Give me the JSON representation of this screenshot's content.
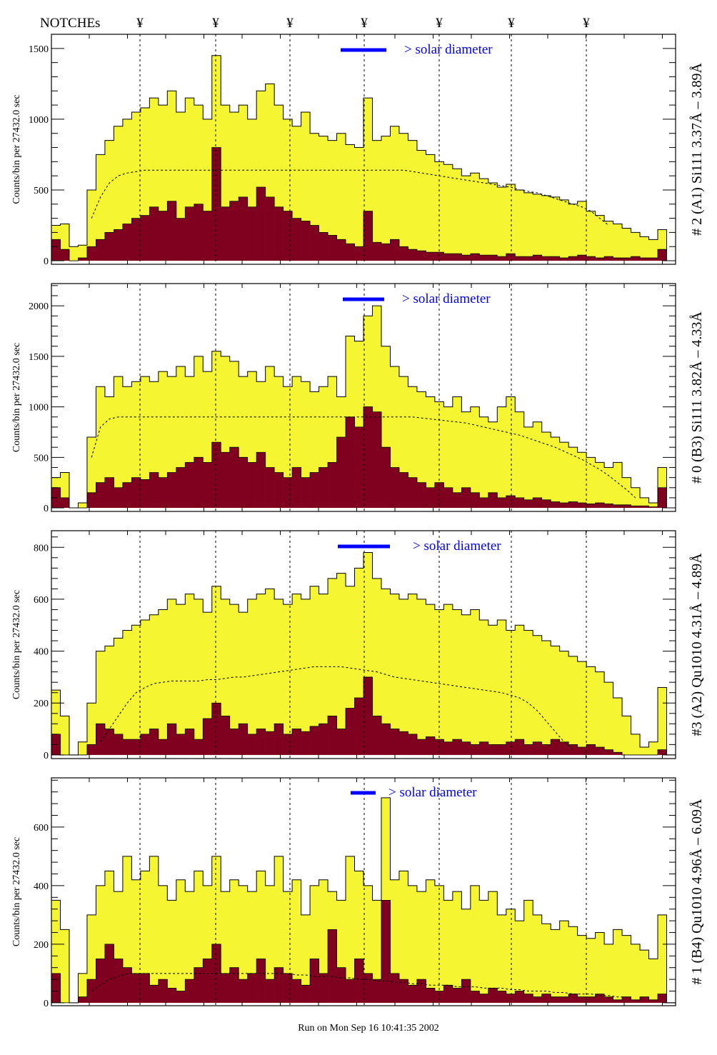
{
  "header": {
    "notches_label": "NOTCHEs",
    "notch_symbol": "¥",
    "notch_count": 7
  },
  "footer": {
    "run_text": "Run on Mon Sep 16 10:41:35 2002"
  },
  "colors": {
    "total_fill": "#f5f532",
    "sub_fill": "#800020",
    "legend": "#0000ff",
    "outline": "#000000"
  },
  "chart_data": [
    {
      "type": "bar",
      "title": "# 2 (A1) Si111  3.37Å – 3.89Å",
      "ylabel": "Counts/bin per  27432.0 sec",
      "legend_text": "> solar diameter",
      "ylim": [
        -25,
        1600
      ],
      "yticks": [
        0,
        500,
        1000,
        1500
      ],
      "ytick_labels": [
        "0",
        "500",
        "1000",
        "1500"
      ],
      "total": [
        250,
        260,
        100,
        110,
        500,
        750,
        850,
        950,
        1000,
        1050,
        1080,
        1150,
        1100,
        1200,
        1050,
        1150,
        1100,
        1000,
        1450,
        1100,
        1050,
        1100,
        1000,
        1200,
        1250,
        1100,
        1000,
        950,
        1050,
        900,
        880,
        850,
        900,
        820,
        800,
        1150,
        850,
        880,
        950,
        900,
        850,
        780,
        750,
        700,
        680,
        650,
        600,
        620,
        580,
        550,
        520,
        540,
        500,
        480,
        470,
        460,
        450,
        430,
        400,
        420,
        350,
        320,
        280,
        260,
        230,
        200,
        170,
        150,
        220,
        0
      ],
      "subset": [
        150,
        80,
        0,
        20,
        100,
        150,
        200,
        220,
        260,
        300,
        320,
        380,
        350,
        420,
        300,
        380,
        400,
        350,
        800,
        380,
        420,
        450,
        380,
        520,
        450,
        380,
        350,
        300,
        280,
        250,
        200,
        180,
        150,
        120,
        100,
        350,
        130,
        120,
        150,
        100,
        80,
        70,
        60,
        60,
        50,
        50,
        40,
        50,
        40,
        40,
        30,
        50,
        30,
        30,
        40,
        30,
        30,
        20,
        30,
        40,
        30,
        20,
        30,
        20,
        20,
        30,
        20,
        20,
        80,
        0
      ],
      "mean": [
        0,
        0,
        0,
        0,
        300,
        450,
        550,
        600,
        620,
        630,
        640,
        640,
        640,
        640,
        640,
        640,
        640,
        640,
        640,
        640,
        640,
        640,
        640,
        640,
        640,
        640,
        640,
        640,
        640,
        640,
        640,
        640,
        640,
        640,
        640,
        640,
        640,
        640,
        640,
        640,
        630,
        620,
        610,
        600,
        590,
        580,
        570,
        560,
        550,
        540,
        530,
        520,
        500,
        490,
        480,
        460,
        440,
        420,
        400,
        380,
        350,
        300,
        250,
        0,
        0,
        0,
        0,
        0,
        0,
        0
      ]
    },
    {
      "type": "bar",
      "title": "# 0 (B3) Si111  3.82Å – 4.33Å",
      "ylabel": "Counts/bin per  27432.0 sec",
      "legend_text": "> solar diameter",
      "ylim": [
        -35,
        2220
      ],
      "yticks": [
        0,
        500,
        1000,
        1500,
        2000
      ],
      "ytick_labels": [
        "0",
        "500",
        "1000",
        "1500",
        "2000"
      ],
      "total": [
        300,
        350,
        0,
        50,
        700,
        1200,
        1100,
        1300,
        1200,
        1250,
        1300,
        1250,
        1350,
        1300,
        1400,
        1300,
        1500,
        1350,
        1550,
        1500,
        1450,
        1300,
        1350,
        1250,
        1400,
        1300,
        1200,
        1300,
        1250,
        1150,
        1200,
        1300,
        1100,
        1700,
        1650,
        1900,
        2000,
        1600,
        1400,
        1300,
        1200,
        1150,
        1100,
        1050,
        1000,
        1100,
        950,
        1000,
        900,
        850,
        1000,
        1100,
        950,
        800,
        850,
        750,
        700,
        650,
        600,
        550,
        500,
        450,
        400,
        450,
        300,
        200,
        100,
        50,
        400,
        0
      ],
      "subset": [
        200,
        100,
        0,
        0,
        150,
        250,
        300,
        200,
        250,
        300,
        280,
        350,
        300,
        350,
        400,
        450,
        500,
        450,
        650,
        550,
        600,
        500,
        450,
        550,
        400,
        350,
        300,
        400,
        300,
        350,
        400,
        450,
        700,
        900,
        800,
        1000,
        950,
        600,
        400,
        350,
        300,
        250,
        200,
        250,
        200,
        150,
        200,
        150,
        100,
        150,
        100,
        120,
        100,
        80,
        100,
        80,
        60,
        50,
        60,
        50,
        40,
        50,
        40,
        30,
        30,
        20,
        20,
        10,
        200,
        0
      ],
      "mean": [
        0,
        0,
        0,
        0,
        500,
        800,
        880,
        900,
        900,
        900,
        900,
        900,
        900,
        900,
        900,
        900,
        900,
        900,
        900,
        900,
        900,
        900,
        900,
        900,
        900,
        900,
        900,
        900,
        900,
        900,
        900,
        900,
        900,
        900,
        900,
        900,
        900,
        900,
        900,
        900,
        900,
        890,
        880,
        870,
        860,
        850,
        840,
        820,
        800,
        780,
        760,
        740,
        720,
        690,
        660,
        630,
        600,
        560,
        520,
        480,
        430,
        380,
        320,
        250,
        180,
        100,
        0,
        0,
        0,
        0
      ]
    },
    {
      "type": "bar",
      "title": "#3 (A2) Qu1010  4.31Å – 4.89Å",
      "ylabel": "Counts/bin per  27432.0 sec",
      "legend_text": "> solar diameter",
      "ylim": [
        -14,
        864
      ],
      "yticks": [
        0,
        200,
        400,
        600,
        800
      ],
      "ytick_labels": [
        "0",
        "200",
        "400",
        "600",
        "800"
      ],
      "total": [
        250,
        150,
        0,
        50,
        200,
        400,
        420,
        450,
        480,
        500,
        520,
        540,
        560,
        600,
        580,
        620,
        600,
        550,
        650,
        600,
        580,
        550,
        600,
        620,
        640,
        600,
        580,
        620,
        600,
        650,
        620,
        680,
        700,
        650,
        720,
        780,
        680,
        640,
        620,
        600,
        620,
        600,
        580,
        560,
        580,
        560,
        540,
        560,
        520,
        500,
        520,
        480,
        500,
        480,
        460,
        440,
        420,
        400,
        380,
        360,
        340,
        320,
        280,
        220,
        150,
        80,
        30,
        50,
        260,
        0
      ],
      "subset": [
        80,
        0,
        0,
        0,
        40,
        120,
        100,
        80,
        60,
        60,
        80,
        100,
        60,
        120,
        80,
        100,
        60,
        140,
        200,
        150,
        100,
        120,
        80,
        100,
        90,
        120,
        80,
        100,
        90,
        110,
        120,
        150,
        100,
        180,
        220,
        300,
        150,
        120,
        100,
        90,
        80,
        60,
        70,
        60,
        50,
        60,
        50,
        40,
        50,
        40,
        40,
        50,
        60,
        40,
        50,
        40,
        60,
        50,
        40,
        30,
        40,
        30,
        20,
        10,
        0,
        0,
        0,
        0,
        20,
        0
      ],
      "mean": [
        0,
        0,
        0,
        0,
        0,
        50,
        100,
        150,
        200,
        240,
        260,
        275,
        280,
        285,
        285,
        285,
        285,
        290,
        290,
        295,
        300,
        300,
        305,
        310,
        315,
        320,
        325,
        330,
        335,
        340,
        340,
        340,
        340,
        335,
        330,
        325,
        320,
        310,
        300,
        295,
        290,
        285,
        280,
        275,
        270,
        265,
        260,
        255,
        250,
        245,
        240,
        230,
        220,
        200,
        170,
        130,
        90,
        50,
        20,
        0,
        0,
        0,
        0,
        0,
        0,
        0,
        0,
        0,
        0,
        0
      ]
    },
    {
      "type": "bar",
      "title": "# 1 (B4) Qu1010 4.96Å – 6.09Å",
      "ylabel": "Counts/bin per  27432.0 sec",
      "legend_text": "> solar diameter",
      "ylim": [
        -10,
        768
      ],
      "yticks": [
        0,
        200,
        400,
        600
      ],
      "ytick_labels": [
        "0",
        "200",
        "400",
        "600"
      ],
      "total": [
        350,
        250,
        0,
        100,
        300,
        400,
        450,
        380,
        500,
        420,
        450,
        500,
        400,
        350,
        420,
        380,
        450,
        400,
        500,
        380,
        420,
        400,
        380,
        450,
        400,
        500,
        380,
        420,
        300,
        400,
        420,
        380,
        350,
        500,
        450,
        400,
        350,
        700,
        420,
        450,
        400,
        380,
        420,
        400,
        350,
        380,
        320,
        400,
        350,
        380,
        300,
        320,
        280,
        350,
        300,
        270,
        250,
        280,
        260,
        230,
        220,
        240,
        200,
        250,
        230,
        200,
        180,
        150,
        300,
        0
      ],
      "subset": [
        100,
        0,
        0,
        20,
        80,
        150,
        200,
        150,
        120,
        100,
        100,
        60,
        80,
        50,
        40,
        80,
        120,
        150,
        200,
        100,
        120,
        80,
        100,
        150,
        80,
        120,
        100,
        80,
        60,
        150,
        100,
        250,
        120,
        80,
        150,
        100,
        80,
        350,
        100,
        80,
        60,
        80,
        50,
        40,
        60,
        50,
        80,
        40,
        30,
        50,
        40,
        30,
        40,
        30,
        20,
        30,
        20,
        20,
        30,
        20,
        20,
        30,
        20,
        10,
        20,
        10,
        20,
        10,
        30,
        0
      ],
      "mean": [
        0,
        0,
        0,
        0,
        40,
        60,
        80,
        90,
        100,
        100,
        100,
        100,
        100,
        100,
        100,
        100,
        100,
        100,
        100,
        100,
        100,
        100,
        100,
        100,
        100,
        100,
        100,
        95,
        95,
        90,
        90,
        90,
        85,
        85,
        80,
        80,
        75,
        75,
        70,
        70,
        65,
        65,
        60,
        60,
        60,
        55,
        55,
        55,
        50,
        50,
        50,
        45,
        45,
        40,
        40,
        40,
        35,
        35,
        30,
        30,
        30,
        25,
        25,
        20,
        20,
        0,
        0,
        0,
        0,
        0
      ]
    }
  ]
}
